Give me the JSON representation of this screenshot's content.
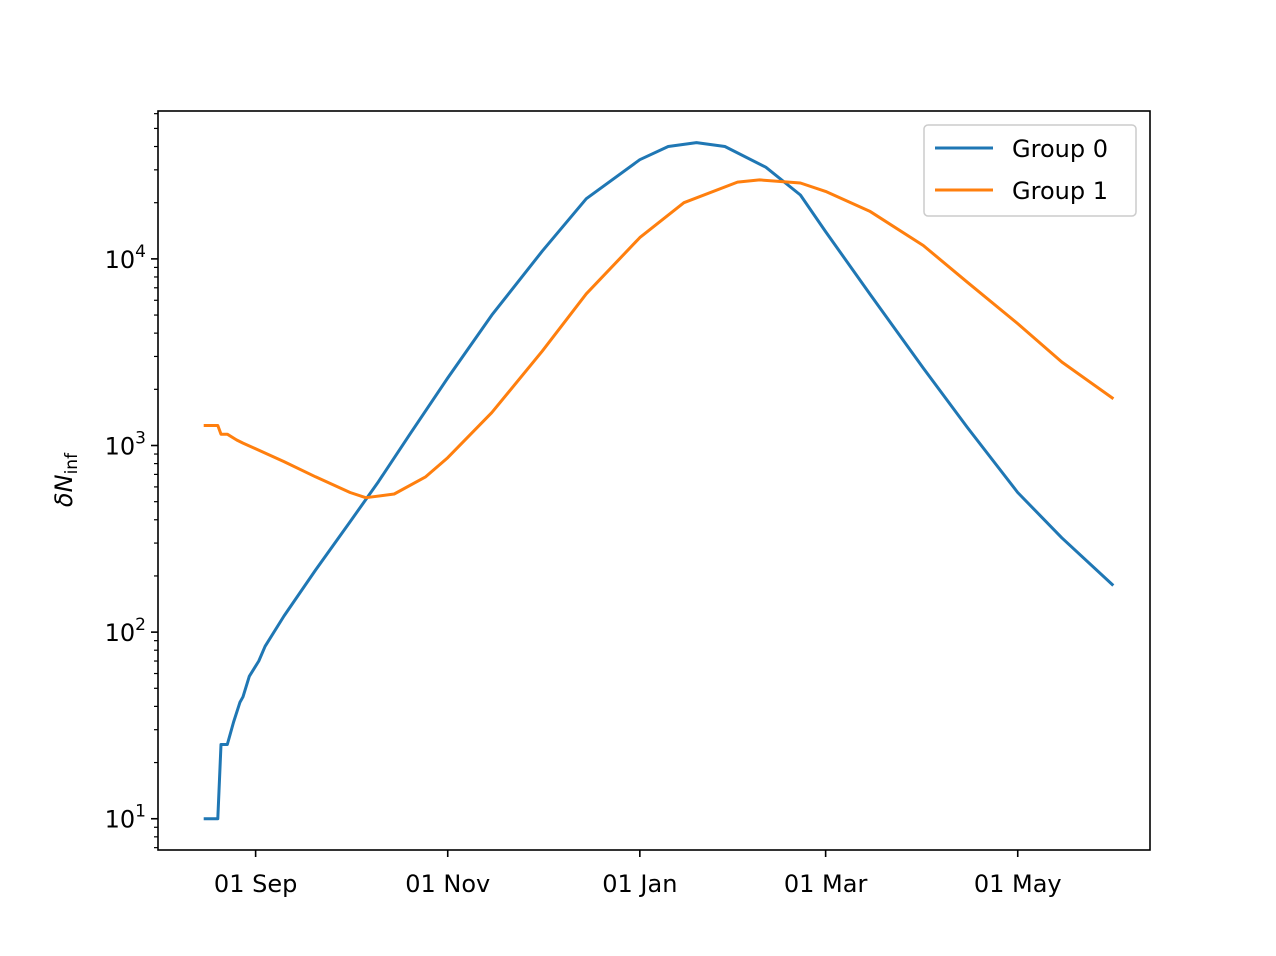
{
  "chart_data": {
    "type": "line",
    "title": "",
    "xlabel": "",
    "ylabel": "δN_inf",
    "ylabel_main": "δN",
    "ylabel_sub": "inf",
    "y_scale": "log",
    "ylim": [
      6.8,
      62000
    ],
    "y_ticks": [
      {
        "value": 10,
        "base": "10",
        "exp": "1"
      },
      {
        "value": 100,
        "base": "10",
        "exp": "2"
      },
      {
        "value": 1000,
        "base": "10",
        "exp": "3"
      },
      {
        "value": 10000,
        "base": "10",
        "exp": "4"
      }
    ],
    "xlim": [
      "2020-08-01",
      "2021-06-12"
    ],
    "x_ticks": [
      {
        "date": "2020-09-01",
        "label": "01 Sep"
      },
      {
        "date": "2020-11-01",
        "label": "01 Nov"
      },
      {
        "date": "2021-01-01",
        "label": "01 Jan"
      },
      {
        "date": "2021-03-01",
        "label": "01 Mar"
      },
      {
        "date": "2021-05-01",
        "label": "01 May"
      }
    ],
    "grid": false,
    "legend_position": "top-right",
    "series": [
      {
        "name": "Group 0",
        "color": "#1f77b4",
        "points": [
          [
            "2020-08-16",
            10
          ],
          [
            "2020-08-20",
            10
          ],
          [
            "2020-08-21",
            25
          ],
          [
            "2020-08-23",
            25
          ],
          [
            "2020-08-25",
            33
          ],
          [
            "2020-08-27",
            42
          ],
          [
            "2020-08-28",
            45
          ],
          [
            "2020-08-30",
            58
          ],
          [
            "2020-09-02",
            70
          ],
          [
            "2020-09-04",
            84
          ],
          [
            "2020-09-10",
            122
          ],
          [
            "2020-09-20",
            215
          ],
          [
            "2020-10-01",
            390
          ],
          [
            "2020-10-10",
            640
          ],
          [
            "2020-10-20",
            1150
          ],
          [
            "2020-11-01",
            2300
          ],
          [
            "2020-11-15",
            5000
          ],
          [
            "2020-12-01",
            11000
          ],
          [
            "2020-12-15",
            21000
          ],
          [
            "2021-01-01",
            34000
          ],
          [
            "2021-01-10",
            40000
          ],
          [
            "2021-01-19",
            42000
          ],
          [
            "2021-01-28",
            40000
          ],
          [
            "2021-02-10",
            31000
          ],
          [
            "2021-02-21",
            22000
          ],
          [
            "2021-03-01",
            14000
          ],
          [
            "2021-03-15",
            6500
          ],
          [
            "2021-04-01",
            2600
          ],
          [
            "2021-04-15",
            1250
          ],
          [
            "2021-05-01",
            560
          ],
          [
            "2021-05-15",
            320
          ],
          [
            "2021-05-31",
            180
          ]
        ]
      },
      {
        "name": "Group 1",
        "color": "#ff7f0e",
        "points": [
          [
            "2020-08-16",
            1280
          ],
          [
            "2020-08-20",
            1280
          ],
          [
            "2020-08-21",
            1150
          ],
          [
            "2020-08-23",
            1150
          ],
          [
            "2020-08-26",
            1070
          ],
          [
            "2020-08-28",
            1030
          ],
          [
            "2020-09-01",
            960
          ],
          [
            "2020-09-10",
            820
          ],
          [
            "2020-09-20",
            680
          ],
          [
            "2020-10-01",
            560
          ],
          [
            "2020-10-06",
            525
          ],
          [
            "2020-10-15",
            550
          ],
          [
            "2020-10-25",
            680
          ],
          [
            "2020-11-01",
            860
          ],
          [
            "2020-11-15",
            1500
          ],
          [
            "2020-12-01",
            3200
          ],
          [
            "2020-12-15",
            6500
          ],
          [
            "2021-01-01",
            13000
          ],
          [
            "2021-01-15",
            20000
          ],
          [
            "2021-02-01",
            25800
          ],
          [
            "2021-02-08",
            26500
          ],
          [
            "2021-02-21",
            25500
          ],
          [
            "2021-03-01",
            23000
          ],
          [
            "2021-03-15",
            18000
          ],
          [
            "2021-04-01",
            11800
          ],
          [
            "2021-04-15",
            7500
          ],
          [
            "2021-05-01",
            4500
          ],
          [
            "2021-05-15",
            2800
          ],
          [
            "2021-05-31",
            1800
          ]
        ]
      }
    ]
  }
}
